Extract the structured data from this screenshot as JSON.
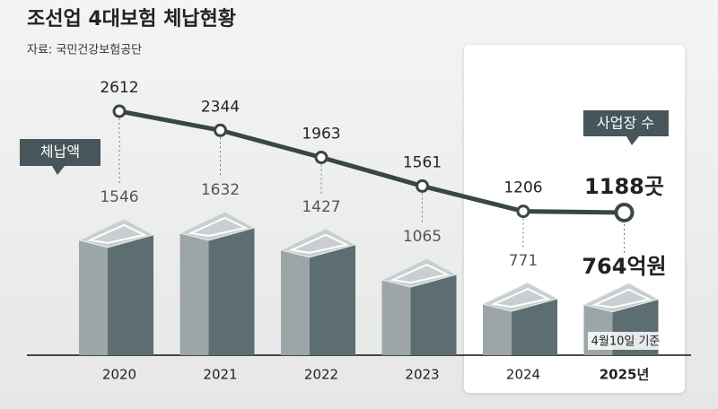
{
  "chart_data": {
    "type": "bar-line",
    "title": "조선업 4대보험 체납현황",
    "subtitle": "자료: 국민건강보험공단",
    "categories": [
      "2020",
      "2021",
      "2022",
      "2023",
      "2024",
      "2025년"
    ],
    "series": [
      {
        "name": "체납액",
        "type": "bar",
        "color": "#5d6e72",
        "values": [
          1546,
          1632,
          1427,
          1065,
          771,
          764
        ],
        "value_labels": [
          "1546",
          "1632",
          "1427",
          "1065",
          "771",
          "764억원"
        ]
      },
      {
        "name": "사업장 수",
        "type": "line",
        "color": "#3a4548",
        "values": [
          2612,
          2344,
          1963,
          1561,
          1206,
          1188
        ],
        "value_labels": [
          "2612",
          "2344",
          "1963",
          "1561",
          "1206",
          "1188곳"
        ]
      }
    ],
    "annotation": "4월10일 기준"
  }
}
